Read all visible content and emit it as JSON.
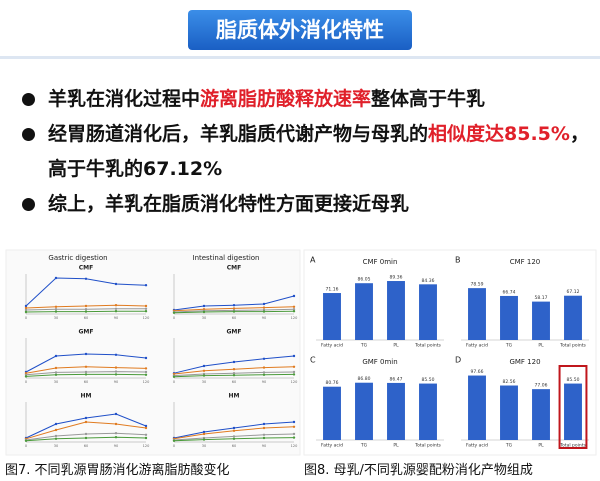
{
  "header": {
    "title": "脂质体外消化特性"
  },
  "bullets": [
    [
      {
        "text": "羊乳在消化过程中",
        "highlight": false
      },
      {
        "text": "游离脂肪酸释放速率",
        "highlight": true
      },
      {
        "text": "整体高于牛乳",
        "highlight": false
      }
    ],
    [
      {
        "text": "经胃肠道消化后，羊乳脂质代谢产物与母乳的",
        "highlight": false
      },
      {
        "text": "相似度达85.5%",
        "highlight": true
      },
      {
        "text": "，高于牛乳的67.12%",
        "highlight": false
      }
    ],
    [
      {
        "text": "综上，羊乳在脂质消化特性方面更接近母乳",
        "highlight": false
      }
    ]
  ],
  "left_figure": {
    "caption": "图7. 不同乳源胃肠消化游离脂肪酸变化",
    "column_titles": [
      "Gastric digestion",
      "Intestinal digestion"
    ],
    "panels": [
      {
        "type": "line",
        "label": "CMF",
        "x": [
          0,
          30,
          60,
          90,
          120
        ],
        "xlim": [
          0,
          120
        ],
        "ylim": [
          0,
          100
        ],
        "series": [
          {
            "color": "#1f4fc8",
            "values": [
              20,
              90,
              88,
              75,
              72
            ]
          },
          {
            "color": "#e07b20",
            "values": [
              15,
              18,
              20,
              22,
              20
            ]
          },
          {
            "color": "#999999",
            "values": [
              10,
              12,
              12,
              13,
              13
            ]
          },
          {
            "color": "#4a9a3a",
            "values": [
              5,
              6,
              6,
              7,
              7
            ]
          }
        ]
      },
      {
        "type": "line",
        "label": "CMF",
        "x": [
          0,
          30,
          60,
          90,
          120
        ],
        "xlim": [
          0,
          120
        ],
        "ylim": [
          0,
          100
        ],
        "series": [
          {
            "color": "#1f4fc8",
            "values": [
              10,
              20,
              22,
              25,
              45
            ]
          },
          {
            "color": "#e07b20",
            "values": [
              8,
              12,
              14,
              16,
              18
            ]
          },
          {
            "color": "#999999",
            "values": [
              5,
              8,
              9,
              10,
              12
            ]
          },
          {
            "color": "#4a9a3a",
            "values": [
              3,
              5,
              6,
              6,
              7
            ]
          }
        ]
      },
      {
        "type": "line",
        "label": "GMF",
        "x": [
          0,
          30,
          60,
          90,
          120
        ],
        "xlim": [
          0,
          120
        ],
        "ylim": [
          0,
          100
        ],
        "series": [
          {
            "color": "#1f4fc8",
            "values": [
              15,
              55,
              60,
              58,
              50
            ]
          },
          {
            "color": "#e07b20",
            "values": [
              12,
              25,
              28,
              26,
              24
            ]
          },
          {
            "color": "#999999",
            "values": [
              8,
              14,
              15,
              16,
              15
            ]
          },
          {
            "color": "#4a9a3a",
            "values": [
              4,
              8,
              9,
              9,
              8
            ]
          }
        ]
      },
      {
        "type": "line",
        "label": "GMF",
        "x": [
          0,
          30,
          60,
          90,
          120
        ],
        "xlim": [
          0,
          120
        ],
        "ylim": [
          0,
          100
        ],
        "series": [
          {
            "color": "#1f4fc8",
            "values": [
              12,
              30,
              40,
              48,
              55
            ]
          },
          {
            "color": "#e07b20",
            "values": [
              10,
              18,
              22,
              26,
              28
            ]
          },
          {
            "color": "#999999",
            "values": [
              6,
              10,
              12,
              14,
              15
            ]
          },
          {
            "color": "#4a9a3a",
            "values": [
              3,
              6,
              7,
              8,
              9
            ]
          }
        ]
      },
      {
        "type": "line",
        "label": "HM",
        "x": [
          0,
          30,
          60,
          90,
          120
        ],
        "xlim": [
          0,
          120
        ],
        "ylim": [
          0,
          100
        ],
        "series": [
          {
            "color": "#1f4fc8",
            "values": [
              10,
              45,
              60,
              70,
              40
            ]
          },
          {
            "color": "#e07b20",
            "values": [
              8,
              30,
              50,
              45,
              35
            ]
          },
          {
            "color": "#999999",
            "values": [
              5,
              15,
              20,
              22,
              18
            ]
          },
          {
            "color": "#4a9a3a",
            "values": [
              3,
              8,
              10,
              12,
              10
            ]
          }
        ]
      },
      {
        "type": "line",
        "label": "HM",
        "x": [
          0,
          30,
          60,
          90,
          120
        ],
        "xlim": [
          0,
          120
        ],
        "ylim": [
          0,
          100
        ],
        "series": [
          {
            "color": "#1f4fc8",
            "values": [
              10,
              25,
              35,
              45,
              50
            ]
          },
          {
            "color": "#e07b20",
            "values": [
              8,
              20,
              28,
              35,
              38
            ]
          },
          {
            "color": "#999999",
            "values": [
              5,
              10,
              14,
              18,
              20
            ]
          },
          {
            "color": "#4a9a3a",
            "values": [
              3,
              6,
              8,
              10,
              11
            ]
          }
        ]
      }
    ]
  },
  "right_figure": {
    "caption": "图8. 母乳/不同乳源婴配粉消化产物组成",
    "panels": [
      {
        "type": "bar",
        "letter": "A",
        "title": "CMF 0min",
        "categories": [
          "Fatty acid",
          "TG",
          "PL",
          "Total points"
        ],
        "values": [
          71.16,
          86.05,
          89.36,
          84.36
        ],
        "value_labels": [
          "71.16",
          "86.05",
          "89.36",
          "84.36"
        ],
        "color": "#2e62c9",
        "ylim": [
          0,
          100
        ]
      },
      {
        "type": "bar",
        "letter": "B",
        "title": "CMF 120",
        "categories": [
          "Fatty acid",
          "TG",
          "PL",
          "Total points"
        ],
        "values": [
          78.59,
          66.74,
          58.17,
          67.12
        ],
        "value_labels": [
          "78.59",
          "66.74",
          "58.17",
          "67.12"
        ],
        "color": "#2e62c9",
        "ylim": [
          0,
          100
        ]
      },
      {
        "type": "bar",
        "letter": "C",
        "title": "GMF 0min",
        "categories": [
          "Fatty acid",
          "TG",
          "PL",
          "Total points"
        ],
        "values": [
          80.76,
          86.8,
          86.47,
          85.5
        ],
        "value_labels": [
          "80.76",
          "86.80",
          "86.47",
          "85.50"
        ],
        "color": "#2e62c9",
        "ylim": [
          0,
          100
        ]
      },
      {
        "type": "bar",
        "letter": "D",
        "title": "GMF 120",
        "categories": [
          "Fatty acid",
          "TG",
          "PL",
          "Total points"
        ],
        "values": [
          97.66,
          82.56,
          77.06,
          85.5
        ],
        "value_labels": [
          "97.66",
          "82.56",
          "77.06",
          "85.50"
        ],
        "color": "#2e62c9",
        "ylim": [
          0,
          100
        ],
        "highlight_index": 3,
        "highlight_color": "#c0161c"
      }
    ]
  }
}
